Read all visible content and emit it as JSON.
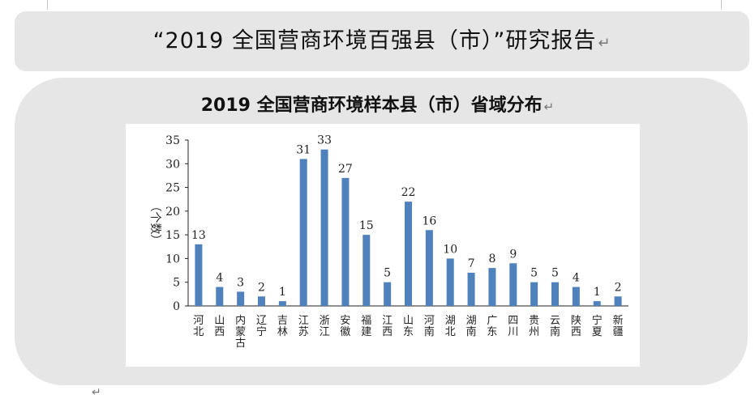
{
  "header": {
    "title": "“2019 全国营商环境百强县（市）”研究报告",
    "return_mark": "↵"
  },
  "chart_heading": {
    "title": "2019 全国营商环境样本县（市）省域分布",
    "return_mark": "↵"
  },
  "chart_data": {
    "type": "bar",
    "title": "2019 全国营商环境样本县（市）省域分布",
    "ylabel": "（个数）",
    "xlabel": "",
    "ylim": [
      0,
      35
    ],
    "yticks": [
      0,
      5,
      10,
      15,
      20,
      25,
      30,
      35
    ],
    "categories": [
      "河北",
      "山西",
      "内蒙古",
      "辽宁",
      "吉林",
      "江苏",
      "浙江",
      "安徽",
      "福建",
      "江西",
      "山东",
      "河南",
      "湖北",
      "湖南",
      "广东",
      "四川",
      "贵州",
      "云南",
      "陕西",
      "宁夏",
      "新疆"
    ],
    "values": [
      13,
      4,
      3,
      2,
      1,
      31,
      33,
      27,
      15,
      5,
      22,
      16,
      10,
      7,
      8,
      9,
      5,
      5,
      4,
      1,
      2
    ],
    "bar_color": "#4f81bd",
    "grid": false,
    "legend": "none",
    "data_labels": true
  },
  "footer": {
    "mark": "↵"
  }
}
